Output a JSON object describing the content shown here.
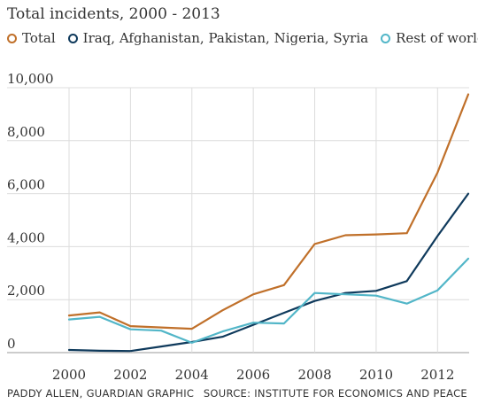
{
  "chart_data": {
    "type": "line",
    "title": "Total incidents, 2000 - 2013",
    "xlabel": "",
    "ylabel": "",
    "x": [
      2000,
      2001,
      2002,
      2003,
      2004,
      2005,
      2006,
      2007,
      2008,
      2009,
      2010,
      2011,
      2012,
      2013
    ],
    "xticks": [
      2000,
      2002,
      2004,
      2006,
      2008,
      2010,
      2012
    ],
    "xtick_labels": [
      "2000",
      "2002",
      "2004",
      "2006",
      "2008",
      "2010",
      "2012"
    ],
    "yticks": [
      0,
      2000,
      4000,
      6000,
      8000,
      10000
    ],
    "ytick_labels": [
      "0",
      "2,000",
      "4,000",
      "6,000",
      "8,000",
      "10,000"
    ],
    "xlim": [
      2000,
      2013
    ],
    "ylim": [
      0,
      10000
    ],
    "grid": true,
    "legend_position": "top",
    "series": [
      {
        "name": "Total",
        "color": "#c0702a",
        "values": [
          1400,
          1520,
          1000,
          950,
          900,
          1600,
          2200,
          2550,
          4100,
          4430,
          4460,
          4510,
          6800,
          9750
        ]
      },
      {
        "name": "Iraq, Afghanistan, Pakistan, Nigeria, Syria",
        "color": "#0f3a5c",
        "values": [
          100,
          70,
          60,
          230,
          400,
          600,
          1050,
          1500,
          1950,
          2250,
          2330,
          2700,
          4400,
          6000
        ]
      },
      {
        "name": "Rest of world",
        "color": "#52b6c8",
        "values": [
          1250,
          1350,
          880,
          830,
          370,
          800,
          1130,
          1100,
          2250,
          2200,
          2150,
          1850,
          2350,
          3550
        ]
      }
    ]
  },
  "footer": {
    "credit": "PADDY ALLEN, GUARDIAN GRAPHIC",
    "source": "SOURCE: INSTITUTE FOR ECONOMICS AND PEACE"
  }
}
